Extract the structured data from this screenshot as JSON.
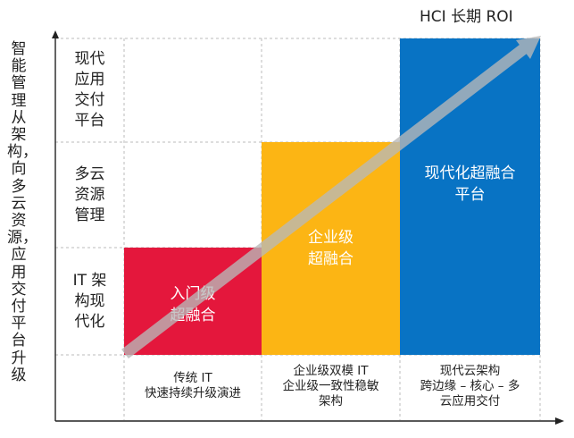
{
  "axes": {
    "x_title": "HCI 长期 ROI",
    "y_title": "智能管理从架构，向多云资源，应用交付平台升级"
  },
  "rows": [
    {
      "label": "现代\n应用\n交付\n平台"
    },
    {
      "label": "多云\n资源\n管理"
    },
    {
      "label": "IT 架\n构现\n代化"
    }
  ],
  "columns": [
    {
      "label": "传统 IT\n快速持续升级演进"
    },
    {
      "label": "企业级双模 IT\n企业级一致性稳敏\n架构"
    },
    {
      "label": "现代云架构\n跨边缘 – 核心 – 多\n云应用交付"
    }
  ],
  "blocks": [
    {
      "label": "入门级\n超融合",
      "color": "#e4173c"
    },
    {
      "label": "企业级\n超融合",
      "color": "#fcb514"
    },
    {
      "label": "现代化超融合\n平台",
      "color": "#0873c4"
    }
  ],
  "colors": {
    "grid": "#bbbbbb",
    "axis": "#222222",
    "arrow": "#b9b9b9"
  }
}
